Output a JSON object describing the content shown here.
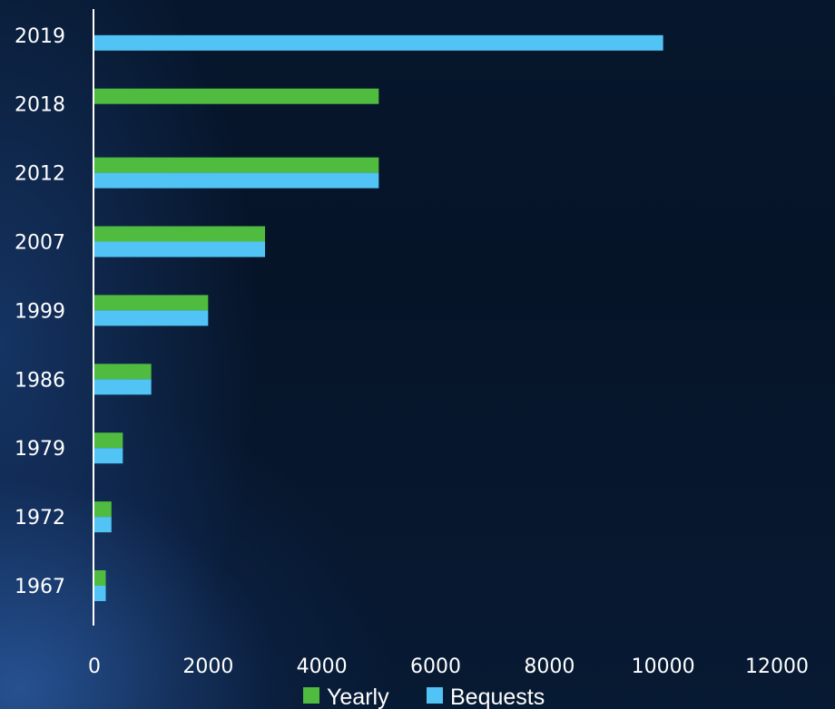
{
  "chart_data": {
    "type": "bar",
    "orientation": "horizontal",
    "categories": [
      "1967",
      "1972",
      "1979",
      "1986",
      "1999",
      "2007",
      "2012",
      "2018",
      "2019"
    ],
    "series": [
      {
        "name": "Yearly",
        "color": "#4fbb3f",
        "values": [
          200,
          300,
          500,
          1000,
          2000,
          3000,
          5000,
          5000,
          null
        ]
      },
      {
        "name": "Bequests",
        "color": "#52c3f5",
        "values": [
          200,
          300,
          500,
          1000,
          2000,
          3000,
          5000,
          null,
          10000
        ]
      }
    ],
    "xlim": [
      0,
      12000
    ],
    "xticks": [
      "0",
      "2000",
      "4000",
      "6000",
      "8000",
      "10000",
      "12000"
    ],
    "title": "",
    "xlabel": "",
    "ylabel": "",
    "grid": false,
    "legend_position": "bottom",
    "axis_color": "#ffffff",
    "text_color": "#ffffff"
  }
}
